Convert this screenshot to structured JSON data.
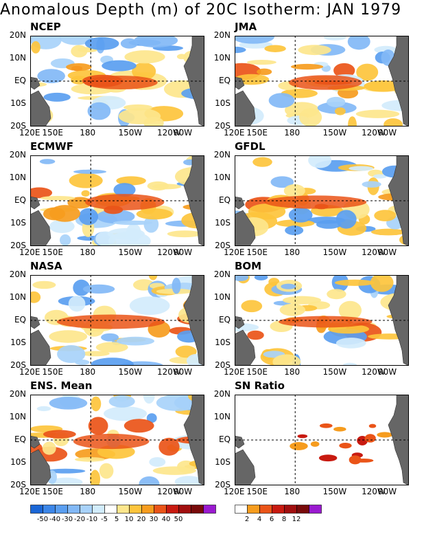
{
  "title": "Anomalous Depth (m) of 20C Isotherm: JAN 1979",
  "axes": {
    "x_ticks": [
      "120E",
      "150E",
      "180",
      "150W",
      "120W",
      "90W"
    ],
    "y_ticks": [
      "20N",
      "10N",
      "EQ",
      "10S",
      "20S"
    ]
  },
  "panels": [
    {
      "name": "NCEP"
    },
    {
      "name": "JMA"
    },
    {
      "name": "ECMWF"
    },
    {
      "name": "GFDL"
    },
    {
      "name": "NASA"
    },
    {
      "name": "BOM"
    },
    {
      "name": "ENS. Mean"
    },
    {
      "name": "SN Ratio"
    }
  ],
  "colorbars": {
    "anomaly": {
      "labels": [
        "-50",
        "-40",
        "-30",
        "-20",
        "-10",
        "-5",
        "5",
        "10",
        "20",
        "30",
        "40",
        "50"
      ],
      "colors": [
        "#1a66d6",
        "#3c86e8",
        "#5a9ef0",
        "#82b8f6",
        "#a8d2fa",
        "#d2ecfc",
        "#ffffff",
        "#fde68c",
        "#fdc43c",
        "#f69c1e",
        "#ea5418",
        "#c81a10",
        "#a00e0e",
        "#780a0a",
        "#9a1ad0"
      ]
    },
    "sn_ratio": {
      "labels": [
        "2",
        "4",
        "6",
        "8",
        "12"
      ],
      "colors": [
        "#ffffff",
        "#f69c1e",
        "#ea5418",
        "#c81a10",
        "#a00e0e",
        "#780a0a",
        "#9a1ad0"
      ]
    }
  },
  "chart_data": {
    "type": "heatmap",
    "title": "Anomalous Depth (m) of 20C Isotherm: JAN 1979",
    "x_range": [
      "120E",
      "70W"
    ],
    "y_range": [
      "20S",
      "20N"
    ],
    "colorbar_units": "m",
    "colorbar_levels": [
      -50,
      -40,
      -30,
      -20,
      -10,
      -5,
      5,
      10,
      20,
      30,
      40,
      50
    ],
    "sn_ratio_levels": [
      2,
      4,
      6,
      8,
      12
    ],
    "reference_lines": [
      "EQ",
      "180"
    ]
  }
}
